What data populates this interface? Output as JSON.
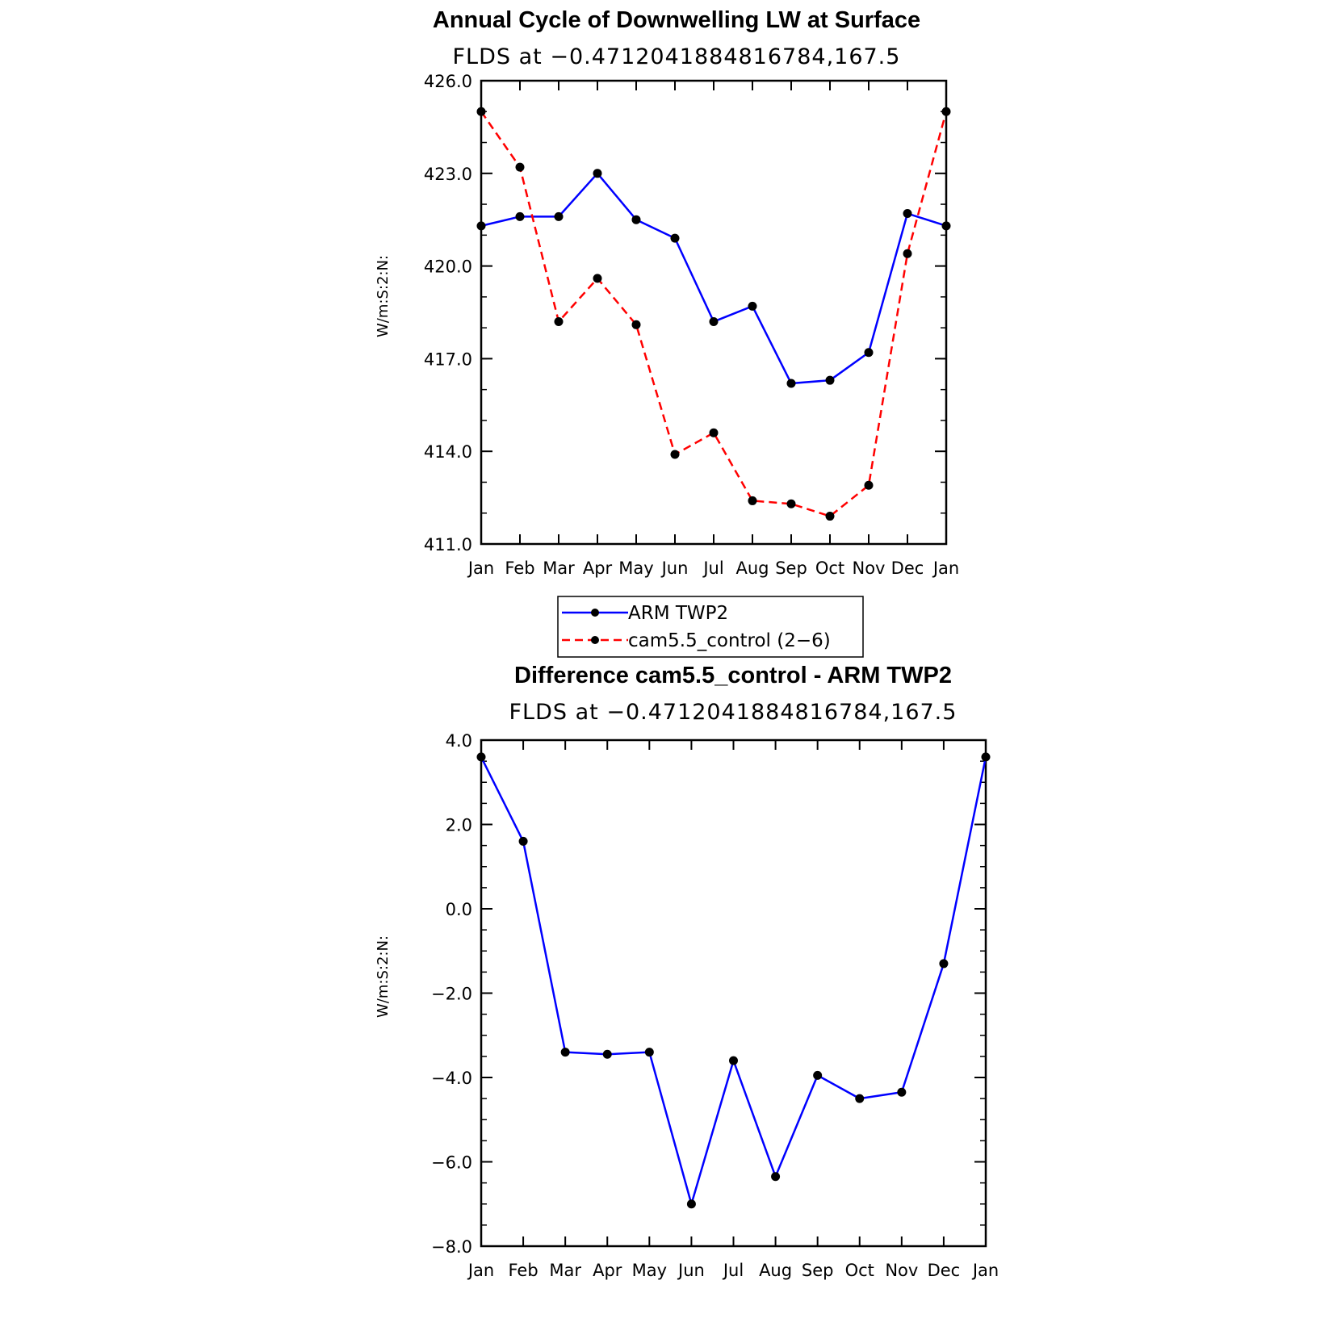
{
  "chart_data": [
    {
      "type": "line",
      "title": "Annual Cycle of Downwelling LW at Surface",
      "subtitle": "FLDS at −0.4712041884816784,167.5",
      "ylabel": "W/m:S:2:N:",
      "xlabel": "",
      "categories": [
        "Jan",
        "Feb",
        "Mar",
        "Apr",
        "May",
        "Jun",
        "Jul",
        "Aug",
        "Sep",
        "Oct",
        "Nov",
        "Dec",
        "Jan"
      ],
      "ylim": [
        411.0,
        426.0
      ],
      "yticks": [
        "411.0",
        "414.0",
        "417.0",
        "420.0",
        "423.0",
        "426.0"
      ],
      "yminor_step": 1.0,
      "series": [
        {
          "name": "ARM TWP2",
          "color": "#0000ff",
          "dash": "solid",
          "values": [
            421.3,
            421.6,
            421.6,
            423.0,
            421.5,
            420.9,
            418.2,
            418.7,
            416.2,
            416.3,
            417.2,
            421.7,
            421.3
          ]
        },
        {
          "name": "cam5.5_control (2−6)",
          "color": "#ff0000",
          "dash": "dashed",
          "values": [
            425.0,
            423.2,
            418.2,
            419.6,
            418.1,
            413.9,
            414.6,
            412.4,
            412.3,
            411.9,
            412.9,
            420.4,
            425.0
          ]
        }
      ],
      "legend": "below"
    },
    {
      "type": "line",
      "title": "Difference cam5.5_control - ARM TWP2",
      "subtitle": "FLDS at −0.4712041884816784,167.5",
      "ylabel": "W/m:S:2:N:",
      "xlabel": "",
      "categories": [
        "Jan",
        "Feb",
        "Mar",
        "Apr",
        "May",
        "Jun",
        "Jul",
        "Aug",
        "Sep",
        "Oct",
        "Nov",
        "Dec",
        "Jan"
      ],
      "ylim": [
        -8.0,
        4.0
      ],
      "yticks": [
        "−8.0",
        "−6.0",
        "−4.0",
        "−2.0",
        "0.0",
        "2.0",
        "4.0"
      ],
      "yminor_step": 0.5,
      "series": [
        {
          "color": "#0000ff",
          "dash": "solid",
          "values": [
            3.6,
            1.6,
            -3.4,
            -3.45,
            -3.4,
            -7.0,
            -3.6,
            -6.35,
            -3.95,
            -4.5,
            -4.35,
            -1.3,
            3.6
          ]
        }
      ]
    }
  ]
}
